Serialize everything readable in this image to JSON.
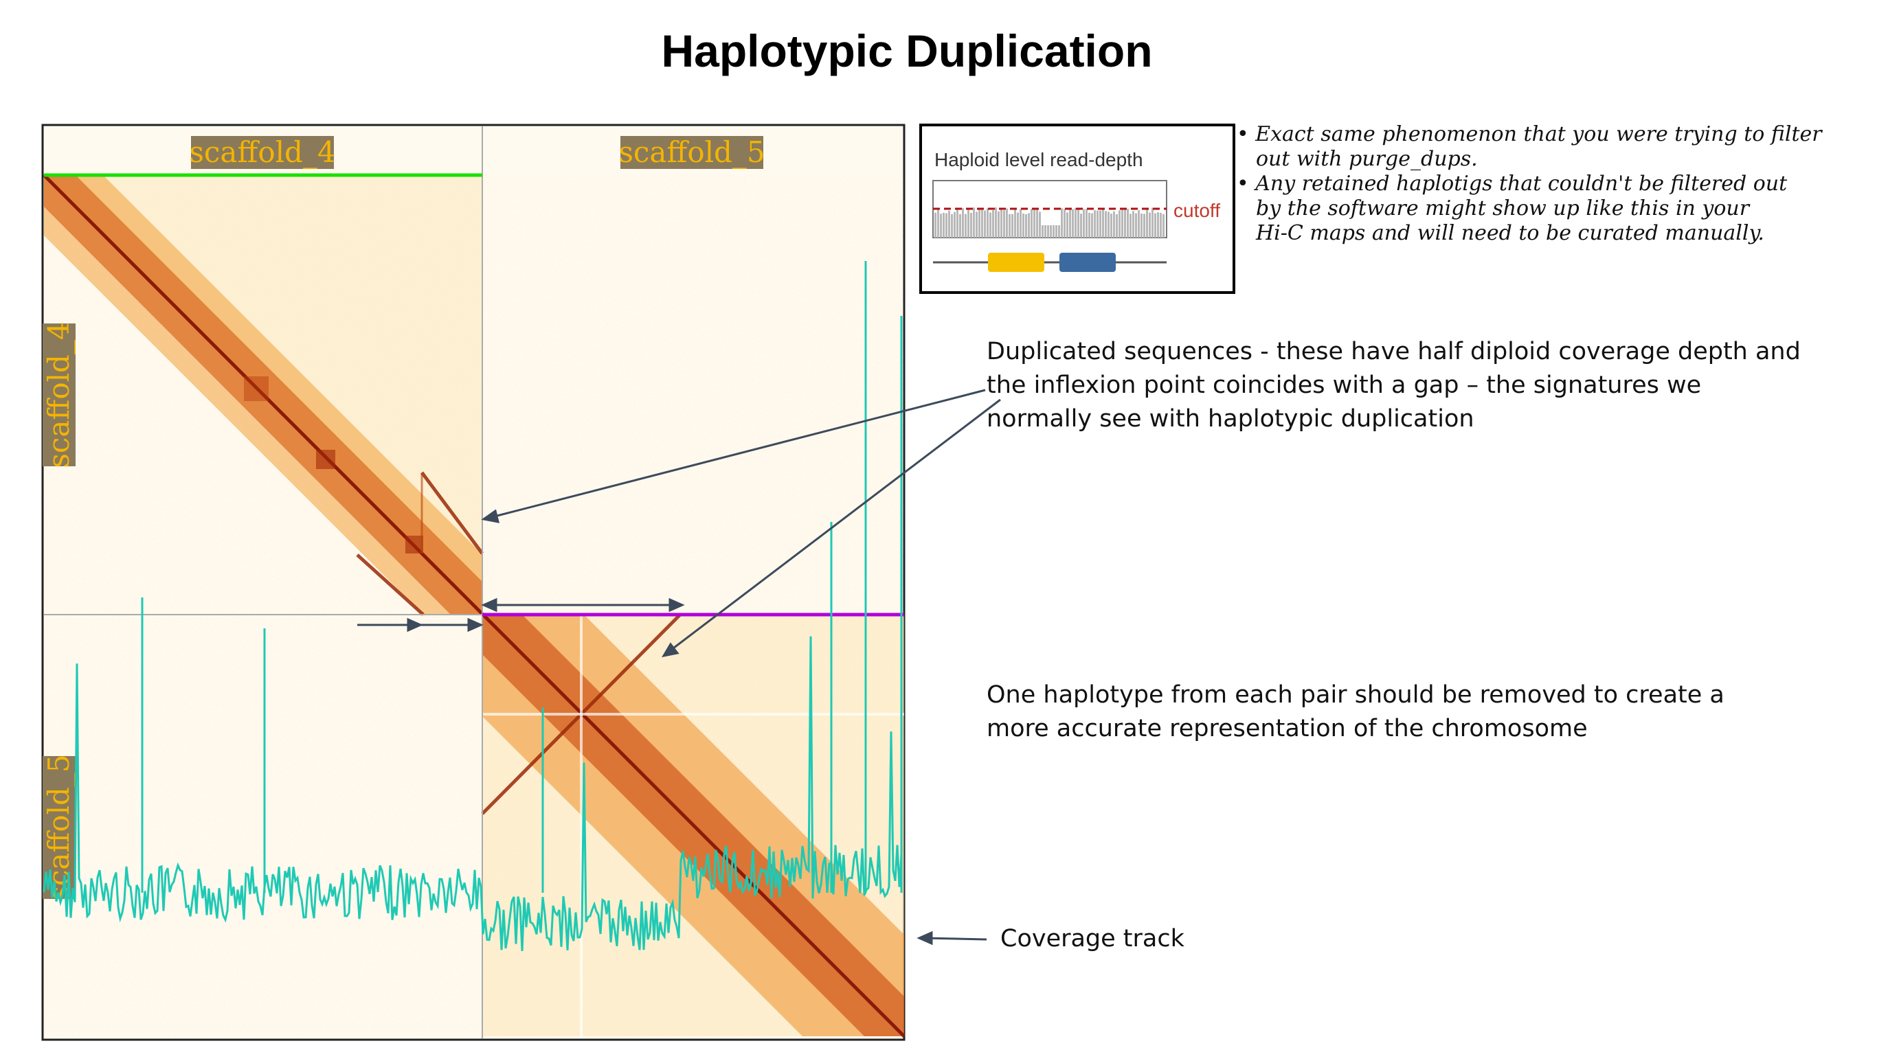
{
  "title": "Haplotypic Duplication",
  "hic_map": {
    "scaffolds": [
      "scaffold_4",
      "scaffold_5"
    ],
    "colors": {
      "contact_strong": "#8b1a06",
      "contact_mid": "#e07a1a",
      "contact_light": "#fbe9b8",
      "background": "#fffaf0",
      "coverage_track": "#1fc9b4",
      "scaffold_4_bar": "#19e000",
      "scaffold_5_bar": "#b000d8",
      "label_bg": "#8a7a5a",
      "label_text": "#f4b400"
    }
  },
  "inset": {
    "title": "Haploid level read-depth",
    "cutoff_label": "cutoff",
    "colors": {
      "bars": "#b8b8b8",
      "cutoff": "#b01010",
      "yellow_block": "#f5c000",
      "blue_block": "#3a6aa0"
    }
  },
  "handwritten_notes": [
    "Exact same phenomenon that you were trying to filter out with purge_dups.",
    "Any retained haplotigs that couldn't be filtered out by the software might show up like this in your Hi-C maps and will need to be curated manually."
  ],
  "annotations": {
    "duplicated": "Duplicated sequences - these have half diploid coverage depth and the inflexion point coincides with a gap – the signatures we normally see with haplotypic duplication",
    "remove": "One haplotype from each pair should be removed to create a more accurate representation of the chromosome",
    "coverage": "Coverage track"
  },
  "duplicated_lines": [
    "Duplicated sequences - these have half diploid coverage depth and",
    "the inflexion point coincides with a gap – the signatures we",
    "normally see with haplotypic duplication"
  ],
  "remove_lines": [
    "One haplotype from each pair should be removed to create a",
    "more accurate representation of the chromosome"
  ],
  "note_lines": [
    "• Exact same phenomenon that you were trying to filter",
    "out with purge_dups.",
    "• Any retained haplotigs that couldn't be filtered out",
    "by the software might show up like this in your",
    "Hi-C maps and will need to be curated manually."
  ]
}
